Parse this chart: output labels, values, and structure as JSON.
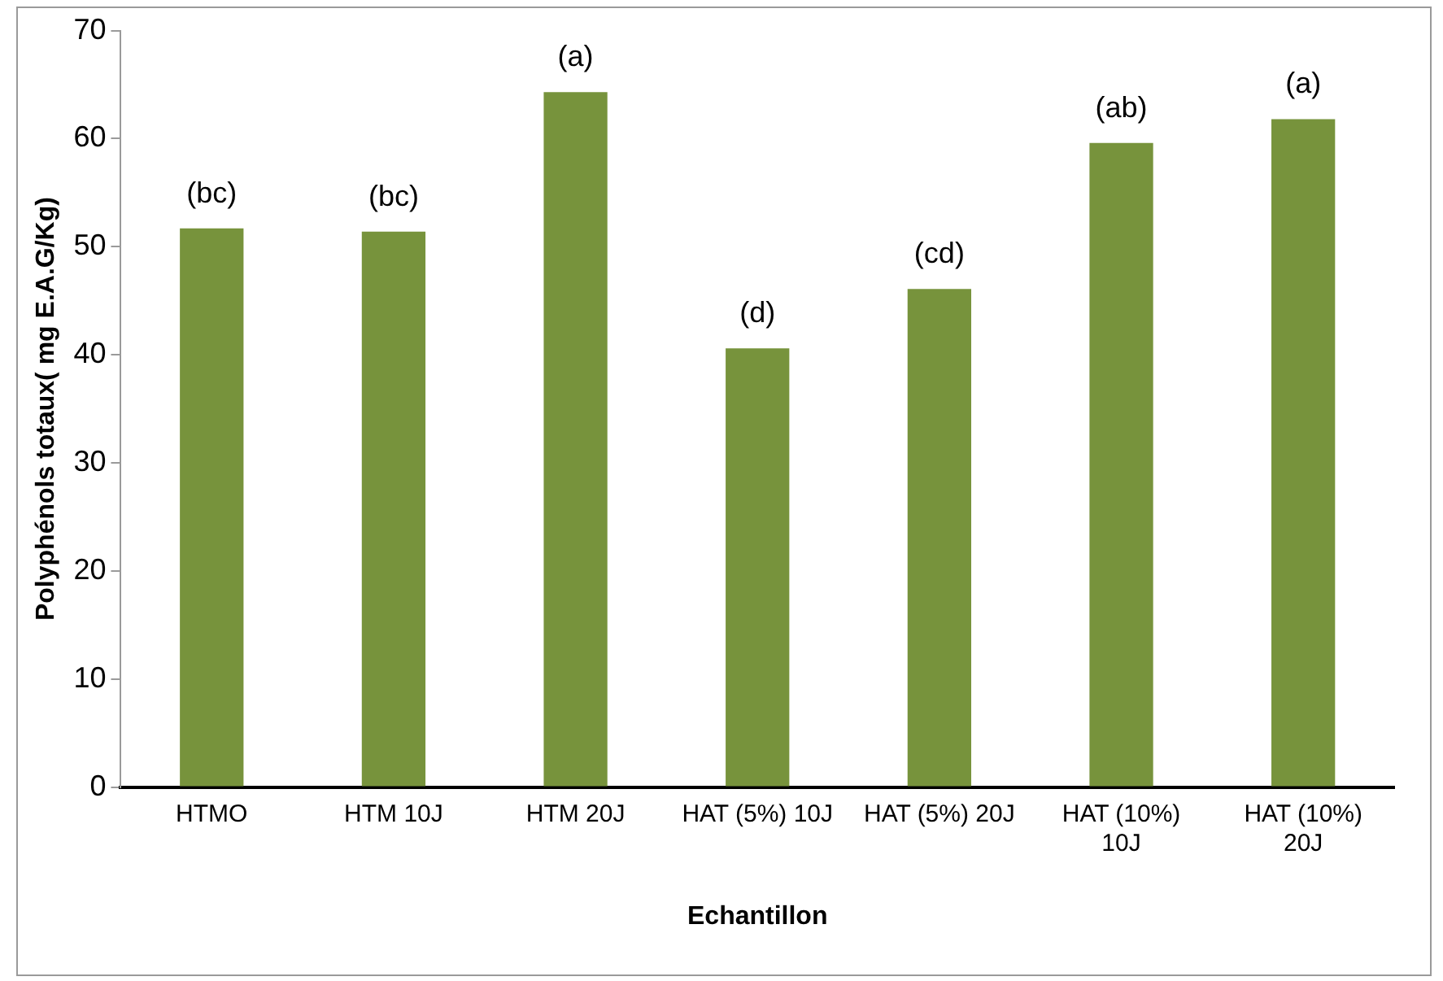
{
  "chart_data": {
    "type": "bar",
    "xlabel": "Echantillon",
    "ylabel": "Polyphénols totaux( mg E.A.G/Kg)",
    "categories": [
      "HTMO",
      "HTM 10J",
      "HTM 20J",
      "HAT (5%) 10J",
      "HAT (5%) 20J",
      "HAT (10%) 10J",
      "HAT (10%) 20J"
    ],
    "values": [
      51.7,
      51.4,
      64.3,
      40.6,
      46.1,
      59.6,
      61.8
    ],
    "value_labels": [
      "(bc)",
      "(bc)",
      "(a)",
      "(d)",
      "(cd)",
      "(ab)",
      "(a)"
    ],
    "color": "#77933c",
    "ylim": [
      0,
      70
    ],
    "yticks": [
      0,
      10,
      20,
      30,
      40,
      50,
      60,
      70
    ],
    "grid": false,
    "legend": false
  }
}
